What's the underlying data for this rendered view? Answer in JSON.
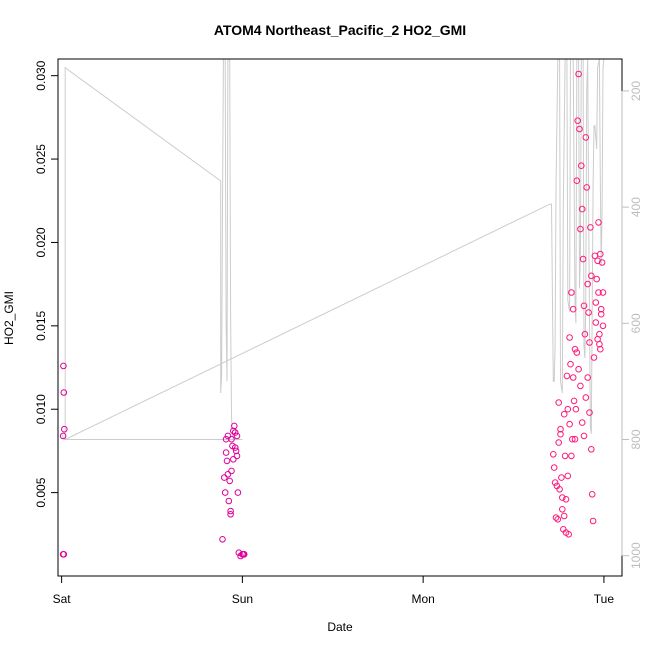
{
  "chart_data": {
    "type": "scatter",
    "title": "ATOM4 Northeast_Pacific_2 HO2_GMI",
    "xlabel": "Date",
    "ylabel": "HO2_GMI",
    "x_ticks": [
      "Sat",
      "Sun",
      "Mon",
      "Tue"
    ],
    "xlim": [
      -0.02,
      3.1
    ],
    "ylim": [
      0.0,
      0.031
    ],
    "y_ticks": [
      "0.005",
      "0.010",
      "0.015",
      "0.020",
      "0.025",
      "0.030"
    ],
    "y_tick_values": [
      0.005,
      0.01,
      0.015,
      0.02,
      0.025,
      0.03
    ],
    "y2_ticks": [
      "200",
      "400",
      "600",
      "800",
      "1000"
    ],
    "y2_tick_values": [
      200,
      400,
      600,
      800,
      1000
    ],
    "y2lim": [
      1035,
      145
    ],
    "grid": false,
    "series": [
      {
        "color": "#e0009a",
        "marker": "open-circle",
        "points": [
          [
            0.01,
            0.0126
          ],
          [
            0.012,
            0.011
          ],
          [
            0.015,
            0.0088
          ],
          [
            0.008,
            0.0084
          ],
          [
            0.008,
            0.0013
          ],
          [
            0.012,
            0.0013
          ],
          [
            0.89,
            0.0022
          ],
          [
            0.9,
            0.0059
          ],
          [
            0.905,
            0.005
          ],
          [
            0.91,
            0.0082
          ],
          [
            0.91,
            0.0074
          ],
          [
            0.915,
            0.0069
          ],
          [
            0.92,
            0.0084
          ],
          [
            0.92,
            0.0061
          ],
          [
            0.925,
            0.0045
          ],
          [
            0.93,
            0.0057
          ],
          [
            0.935,
            0.0039
          ],
          [
            0.935,
            0.0037
          ],
          [
            0.94,
            0.0082
          ],
          [
            0.94,
            0.0063
          ],
          [
            0.945,
            0.0078
          ],
          [
            0.95,
            0.0087
          ],
          [
            0.95,
            0.007
          ],
          [
            0.955,
            0.009
          ],
          [
            0.96,
            0.0086
          ],
          [
            0.96,
            0.0077
          ],
          [
            0.965,
            0.0075
          ],
          [
            0.97,
            0.0084
          ],
          [
            0.97,
            0.0072
          ],
          [
            0.975,
            0.005
          ],
          [
            0.98,
            0.0014
          ],
          [
            0.99,
            0.0012
          ],
          [
            1.0,
            0.0013
          ],
          [
            1.005,
            0.0013
          ],
          [
            1.01,
            0.0013
          ]
        ]
      },
      {
        "color": "#ff1a7a",
        "marker": "open-circle",
        "points": [
          [
            2.72,
            0.0073
          ],
          [
            2.725,
            0.0065
          ],
          [
            2.73,
            0.0056
          ],
          [
            2.735,
            0.0035
          ],
          [
            2.74,
            0.0054
          ],
          [
            2.745,
            0.0034
          ],
          [
            2.75,
            0.008
          ],
          [
            2.755,
            0.0052
          ],
          [
            2.76,
            0.0085
          ],
          [
            2.765,
            0.0059
          ],
          [
            2.77,
            0.0047
          ],
          [
            2.775,
            0.0028
          ],
          [
            2.78,
            0.0097
          ],
          [
            2.785,
            0.0072
          ],
          [
            2.79,
            0.0026
          ],
          [
            2.795,
            0.012
          ],
          [
            2.8,
            0.01
          ],
          [
            2.805,
            0.0025
          ],
          [
            2.81,
            0.0143
          ],
          [
            2.815,
            0.0127
          ],
          [
            2.82,
            0.017
          ],
          [
            2.825,
            0.0082
          ],
          [
            2.83,
            0.016
          ],
          [
            2.835,
            0.0105
          ],
          [
            2.84,
            0.0136
          ],
          [
            2.845,
            0.01
          ],
          [
            2.85,
            0.0237
          ],
          [
            2.855,
            0.0273
          ],
          [
            2.86,
            0.0301
          ],
          [
            2.865,
            0.0268
          ],
          [
            2.87,
            0.0208
          ],
          [
            2.875,
            0.0246
          ],
          [
            2.88,
            0.022
          ],
          [
            2.885,
            0.019
          ],
          [
            2.89,
            0.0162
          ],
          [
            2.895,
            0.0145
          ],
          [
            2.9,
            0.0263
          ],
          [
            2.905,
            0.0233
          ],
          [
            2.91,
            0.0175
          ],
          [
            2.915,
            0.0158
          ],
          [
            2.92,
            0.014
          ],
          [
            2.925,
            0.0209
          ],
          [
            2.93,
            0.018
          ],
          [
            2.935,
            0.0049
          ],
          [
            2.94,
            0.0033
          ],
          [
            2.945,
            0.0131
          ],
          [
            2.95,
            0.0192
          ],
          [
            2.955,
            0.0164
          ],
          [
            2.96,
            0.0178
          ],
          [
            2.965,
            0.0189
          ],
          [
            2.97,
            0.017
          ],
          [
            2.975,
            0.0145
          ],
          [
            2.98,
            0.0136
          ],
          [
            2.985,
            0.016
          ],
          [
            2.99,
            0.0188
          ],
          [
            2.995,
            0.015
          ],
          [
            2.87,
            0.0114
          ],
          [
            2.88,
            0.0092
          ],
          [
            2.89,
            0.0084
          ],
          [
            2.9,
            0.0107
          ],
          [
            2.91,
            0.0119
          ],
          [
            2.92,
            0.0098
          ],
          [
            2.93,
            0.0076
          ],
          [
            2.86,
            0.0124
          ],
          [
            2.85,
            0.0134
          ],
          [
            2.84,
            0.0082
          ],
          [
            2.83,
            0.0119
          ],
          [
            2.82,
            0.0072
          ],
          [
            2.81,
            0.0091
          ],
          [
            2.8,
            0.006
          ],
          [
            2.79,
            0.0046
          ],
          [
            2.78,
            0.0036
          ],
          [
            2.77,
            0.004
          ],
          [
            2.76,
            0.0088
          ],
          [
            2.75,
            0.0104
          ],
          [
            2.955,
            0.0152
          ],
          [
            2.965,
            0.0142
          ],
          [
            2.975,
            0.0139
          ],
          [
            2.985,
            0.0157
          ],
          [
            2.995,
            0.017
          ],
          [
            2.98,
            0.0193
          ],
          [
            2.97,
            0.0212
          ]
        ]
      }
    ],
    "pressure_line": {
      "color": "#cccccc",
      "points": [
        [
          0.0,
          790
        ],
        [
          0.015,
          800
        ],
        [
          0.02,
          800
        ],
        [
          0.02,
          160
        ],
        [
          0.88,
          355
        ],
        [
          0.88,
          720
        ],
        [
          0.885,
          690
        ],
        [
          0.89,
          400
        ],
        [
          0.895,
          145
        ],
        [
          0.905,
          145
        ],
        [
          0.91,
          600
        ],
        [
          0.915,
          700
        ],
        [
          0.92,
          145
        ],
        [
          0.93,
          145
        ],
        [
          0.935,
          580
        ],
        [
          0.94,
          760
        ],
        [
          0.945,
          790
        ],
        [
          0.95,
          800
        ],
        [
          0.96,
          800
        ],
        [
          0.97,
          800
        ],
        [
          0.98,
          800
        ],
        [
          0.99,
          800
        ],
        [
          1.0,
          800
        ],
        [
          0.02,
          800
        ],
        [
          0.02,
          800
        ],
        [
          2.7,
          395
        ],
        [
          2.71,
          395
        ],
        [
          2.72,
          700
        ],
        [
          2.725,
          700
        ],
        [
          2.73,
          640
        ],
        [
          2.735,
          370
        ],
        [
          2.745,
          145
        ],
        [
          2.755,
          145
        ],
        [
          2.76,
          700
        ],
        [
          2.77,
          720
        ],
        [
          2.775,
          400
        ],
        [
          2.785,
          145
        ],
        [
          2.795,
          145
        ],
        [
          2.8,
          560
        ],
        [
          2.81,
          580
        ],
        [
          2.815,
          145
        ],
        [
          2.83,
          145
        ],
        [
          2.84,
          570
        ],
        [
          2.845,
          600
        ],
        [
          2.85,
          145
        ],
        [
          2.86,
          145
        ],
        [
          2.865,
          540
        ],
        [
          2.87,
          480
        ],
        [
          2.875,
          145
        ],
        [
          2.885,
          145
        ],
        [
          2.89,
          640
        ],
        [
          2.895,
          660
        ],
        [
          2.9,
          560
        ],
        [
          2.905,
          200
        ],
        [
          2.91,
          145
        ],
        [
          2.915,
          400
        ],
        [
          2.925,
          780
        ],
        [
          2.93,
          790
        ],
        [
          2.94,
          360
        ],
        [
          2.945,
          260
        ],
        [
          2.95,
          260
        ],
        [
          2.96,
          300
        ],
        [
          2.965,
          160
        ],
        [
          2.975,
          145
        ],
        [
          2.98,
          350
        ],
        [
          2.985,
          500
        ],
        [
          2.99,
          400
        ],
        [
          2.995,
          160
        ],
        [
          3.0,
          145
        ]
      ]
    }
  }
}
